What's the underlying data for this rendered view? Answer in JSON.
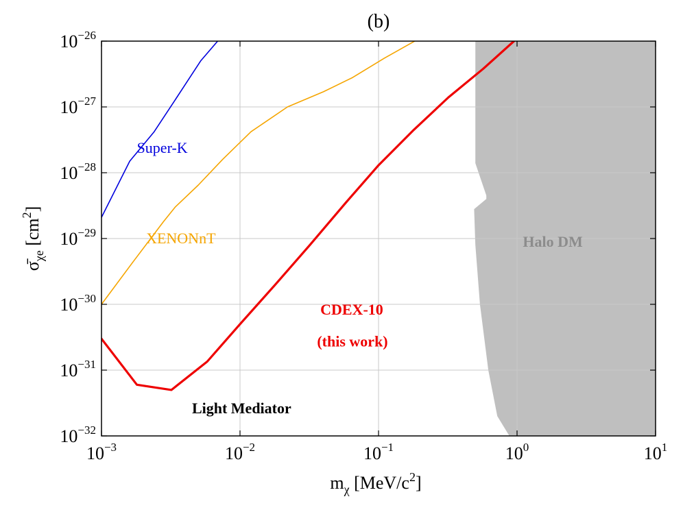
{
  "chart_data": {
    "type": "line",
    "title": "(b)",
    "xlabel": {
      "base": "m",
      "sub": "χ",
      "rest": " [MeV/c",
      "sup": "2",
      "end": "]"
    },
    "ylabel": {
      "base": "σ̄",
      "sub": "χe",
      "rest": " [cm",
      "sup": "2",
      "end": "]"
    },
    "x_scale": "log",
    "y_scale": "log",
    "xlim": [
      0.001,
      10
    ],
    "ylim": [
      1e-32,
      1e-26
    ],
    "grid": true,
    "x_ticks": [
      {
        "value": 0.001,
        "base": "10",
        "exp": "−3"
      },
      {
        "value": 0.01,
        "base": "10",
        "exp": "−2"
      },
      {
        "value": 0.1,
        "base": "10",
        "exp": "−1"
      },
      {
        "value": 1,
        "base": "10",
        "exp": "0"
      },
      {
        "value": 10,
        "base": "10",
        "exp": "1"
      }
    ],
    "y_ticks": [
      {
        "value": 1e-32,
        "base": "10",
        "exp": "−32"
      },
      {
        "value": 1e-31,
        "base": "10",
        "exp": "−31"
      },
      {
        "value": 1e-30,
        "base": "10",
        "exp": "−30"
      },
      {
        "value": 1e-29,
        "base": "10",
        "exp": "−29"
      },
      {
        "value": 1e-28,
        "base": "10",
        "exp": "−28"
      },
      {
        "value": 1e-27,
        "base": "10",
        "exp": "−27"
      },
      {
        "value": 1e-26,
        "base": "10",
        "exp": "−26"
      }
    ],
    "series": [
      {
        "name": "Super-K",
        "color": "#0000dd",
        "x": [
          0.001,
          0.0016,
          0.0024,
          0.0035,
          0.0052,
          0.0069
        ],
        "y": [
          2.1e-29,
          1.5e-28,
          4.2e-28,
          1.4e-27,
          5e-27,
          1e-26
        ]
      },
      {
        "name": "XENONnT",
        "color": "#f5a500",
        "x": [
          0.001,
          0.0017,
          0.0028,
          0.0034,
          0.005,
          0.0075,
          0.012,
          0.022,
          0.04,
          0.065,
          0.11,
          0.19
        ],
        "y": [
          1e-30,
          4.5e-30,
          1.8e-29,
          3e-29,
          6.5e-29,
          1.6e-28,
          4.2e-28,
          1e-27,
          1.7e-27,
          2.8e-27,
          5.5e-27,
          1.05e-26
        ]
      },
      {
        "name": "CDEX-10 (this work)",
        "color": "#ee0000",
        "x": [
          0.001,
          0.0018,
          0.0032,
          0.0058,
          0.01,
          0.018,
          0.032,
          0.058,
          0.1,
          0.18,
          0.32,
          0.57,
          0.95
        ],
        "y": [
          3e-31,
          6e-32,
          5e-32,
          1.35e-31,
          5e-31,
          2e-30,
          8e-30,
          3.5e-29,
          1.3e-28,
          4.5e-28,
          1.4e-27,
          3.8e-27,
          1e-26
        ]
      }
    ],
    "region": {
      "name": "Halo DM",
      "color": "#bfbfbf",
      "boundary": [
        {
          "x": 0.5,
          "y": 1e-26
        },
        {
          "x": 0.5,
          "y": 1.4e-28
        },
        {
          "x": 0.6,
          "y": 4.5e-29
        },
        {
          "x": 0.6,
          "y": 4e-29
        },
        {
          "x": 0.49,
          "y": 2.8e-29
        },
        {
          "x": 0.5,
          "y": 8e-30
        },
        {
          "x": 0.54,
          "y": 1e-30
        },
        {
          "x": 0.62,
          "y": 1e-31
        },
        {
          "x": 0.72,
          "y": 2e-32
        },
        {
          "x": 0.88,
          "y": 1e-32
        }
      ]
    },
    "annotations": [
      {
        "text": "Super-K",
        "x": 0.0018,
        "y": 2e-28,
        "color": "#0000dd",
        "bold": false,
        "size": "normal"
      },
      {
        "text": "XENONnT",
        "x": 0.0021,
        "y": 8.5e-30,
        "color": "#f5a500",
        "bold": false,
        "size": "normal"
      },
      {
        "text": "CDEX-10",
        "x": 0.038,
        "y": 7e-31,
        "color": "#ee0000",
        "bold": true,
        "size": "normal"
      },
      {
        "text": "(this work)",
        "x": 0.036,
        "y": 2.3e-31,
        "color": "#ee0000",
        "bold": true,
        "size": "normal"
      },
      {
        "text": "Halo DM",
        "x": 1.1,
        "y": 7.5e-30,
        "color": "#8c8c8c",
        "bold": true,
        "size": "normal"
      },
      {
        "text": "Light Mediator",
        "x": 0.0045,
        "y": 2.2e-32,
        "color": "#000000",
        "bold": true,
        "size": "large"
      }
    ]
  }
}
